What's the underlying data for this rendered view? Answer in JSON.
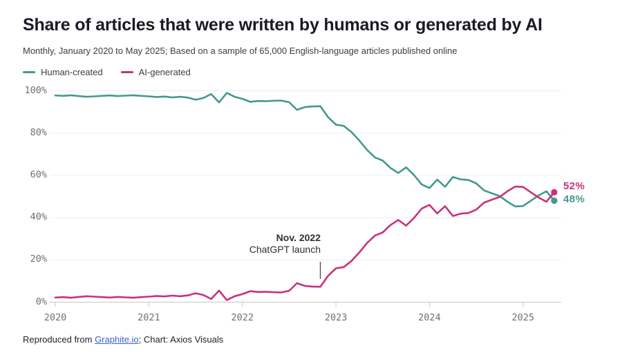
{
  "header": {
    "title": "Share of articles that were written by humans or generated by AI",
    "subtitle": "Monthly, January 2020 to May 2025; Based on a sample of 65,000 English-language articles published online"
  },
  "legend": [
    {
      "label": "Human-created",
      "color": "#43998b"
    },
    {
      "label": "AI-generated",
      "color": "#c8317d"
    }
  ],
  "chart_data": {
    "type": "line",
    "title": "Share of articles that were written by humans or generated by AI",
    "x_unit": "month",
    "x_start": "2020-01",
    "x_end": "2025-05",
    "x_tick_labels": [
      "2020",
      "2021",
      "2022",
      "2023",
      "2024",
      "2025"
    ],
    "y_tick_labels": [
      "0%",
      "20%",
      "40%",
      "60%",
      "80%",
      "100%"
    ],
    "ylim": [
      0,
      100
    ],
    "grid": "horizontal",
    "legend_position": "top-left",
    "series": [
      {
        "name": "Human-created",
        "color": "#43998b",
        "end_label": "48%",
        "values": [
          97.8,
          97.6,
          97.9,
          97.5,
          97.2,
          97.4,
          97.6,
          97.8,
          97.5,
          97.7,
          97.9,
          97.6,
          97.4,
          97.1,
          97.3,
          96.9,
          97.2,
          96.8,
          95.8,
          96.6,
          98.5,
          94.5,
          99.0,
          97.2,
          96.2,
          94.8,
          95.2,
          95.1,
          95.3,
          95.4,
          94.6,
          91.0,
          92.3,
          92.6,
          92.7,
          87.5,
          84.0,
          83.4,
          80.5,
          76.5,
          72.0,
          68.5,
          67.0,
          63.5,
          61.1,
          63.8,
          60.2,
          55.7,
          54.0,
          58.0,
          54.6,
          59.2,
          58.1,
          57.8,
          56.2,
          52.9,
          51.5,
          50.2,
          47.5,
          45.3,
          45.5,
          48.0,
          50.5,
          52.5,
          48.0
        ]
      },
      {
        "name": "AI-generated",
        "color": "#c8317d",
        "end_label": "52%",
        "values": [
          2.2,
          2.4,
          2.1,
          2.5,
          2.8,
          2.6,
          2.4,
          2.2,
          2.5,
          2.3,
          2.1,
          2.4,
          2.6,
          2.9,
          2.7,
          3.1,
          2.8,
          3.2,
          4.2,
          3.4,
          1.5,
          5.5,
          1.0,
          2.8,
          3.8,
          5.2,
          4.8,
          4.9,
          4.7,
          4.6,
          5.4,
          9.0,
          7.7,
          7.4,
          7.3,
          12.5,
          16.0,
          16.6,
          19.5,
          23.5,
          28.0,
          31.5,
          33.0,
          36.5,
          38.9,
          36.2,
          39.8,
          44.3,
          46.0,
          42.0,
          45.4,
          40.8,
          41.9,
          42.2,
          43.8,
          47.1,
          48.5,
          49.8,
          52.5,
          54.7,
          54.5,
          52.0,
          49.5,
          47.5,
          52.0
        ]
      }
    ],
    "annotation": {
      "line1": "Nov. 2022",
      "line2": "ChatGPT launch",
      "x_month": "2022-11"
    }
  },
  "footer": {
    "prefix": "Reproduced from ",
    "link": "Graphite.io",
    "suffix": "; Chart: Axios Visuals"
  }
}
